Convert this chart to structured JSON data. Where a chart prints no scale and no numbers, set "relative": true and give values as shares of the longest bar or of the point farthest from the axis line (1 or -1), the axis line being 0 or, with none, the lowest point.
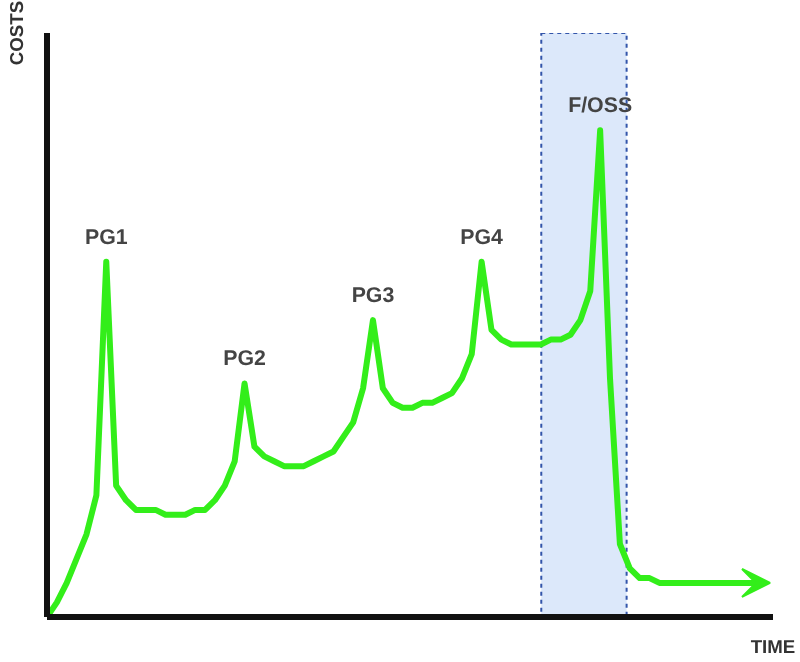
{
  "chart_data": {
    "type": "line",
    "relative": true,
    "xlabel": "TIME",
    "ylabel": "COSTS",
    "tick_labels": false,
    "grid": false,
    "marker": "none",
    "line_style": "solid",
    "categories": [
      null,
      null,
      null,
      null,
      null,
      null,
      null,
      null,
      null,
      null,
      null,
      null,
      null,
      null,
      null,
      null,
      null,
      null,
      null,
      null,
      null,
      null,
      null,
      null,
      null,
      null,
      null,
      null,
      null,
      null,
      null,
      null,
      null,
      null,
      null,
      null,
      null,
      null,
      null,
      null,
      null,
      null,
      null,
      null,
      null,
      null,
      null,
      null,
      null,
      null,
      null,
      null,
      null,
      null,
      null,
      null,
      null,
      null,
      null,
      null,
      null,
      null,
      null,
      null,
      null,
      null,
      null,
      null,
      null,
      null,
      null,
      null,
      null
    ],
    "series": [
      {
        "color": "#33ee1a",
        "values": [
          0,
          0.03,
          0.07,
          0.12,
          0.17,
          0.25,
          0.73,
          0.27,
          0.24,
          0.22,
          0.22,
          0.22,
          0.21,
          0.21,
          0.21,
          0.22,
          0.22,
          0.24,
          0.27,
          0.32,
          0.48,
          0.35,
          0.33,
          0.32,
          0.31,
          0.31,
          0.31,
          0.32,
          0.33,
          0.34,
          0.37,
          0.4,
          0.47,
          0.61,
          0.47,
          0.44,
          0.43,
          0.43,
          0.44,
          0.44,
          0.45,
          0.46,
          0.49,
          0.54,
          0.73,
          0.59,
          0.57,
          0.56,
          0.56,
          0.56,
          0.56,
          0.57,
          0.57,
          0.58,
          0.61,
          0.67,
          1,
          0.49,
          0.15,
          0.1,
          0.08,
          0.08,
          0.07,
          0.07,
          0.07,
          0.07,
          0.07,
          0.07,
          0.07,
          0.07,
          0.07,
          0.07,
          0.07
        ]
      }
    ],
    "annotations": [
      "PG1",
      "PG2",
      "PG3",
      "PG4",
      "F/OSS"
    ]
  }
}
